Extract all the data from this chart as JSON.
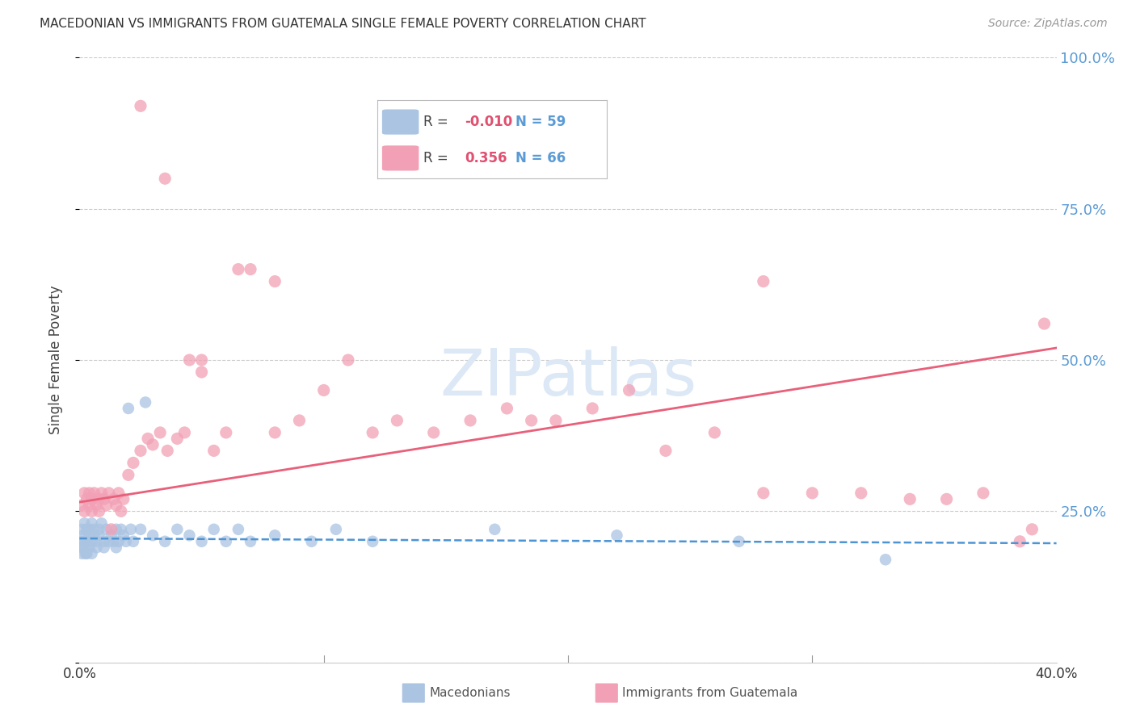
{
  "title": "MACEDONIAN VS IMMIGRANTS FROM GUATEMALA SINGLE FEMALE POVERTY CORRELATION CHART",
  "source": "Source: ZipAtlas.com",
  "ylabel": "Single Female Poverty",
  "xmin": 0.0,
  "xmax": 0.4,
  "ymin": 0.0,
  "ymax": 1.0,
  "macedonian_R": -0.01,
  "macedonian_N": 59,
  "guatemala_R": 0.356,
  "guatemala_N": 66,
  "macedonian_color": "#aac4e2",
  "guatemala_color": "#f2a0b5",
  "macedonian_line_color": "#4d94d4",
  "guatemala_line_color": "#e8607a",
  "watermark_color": "#dce8f5",
  "mac_x": [
    0.0005,
    0.001,
    0.001,
    0.001,
    0.0015,
    0.002,
    0.002,
    0.002,
    0.0025,
    0.003,
    0.003,
    0.003,
    0.004,
    0.004,
    0.004,
    0.005,
    0.005,
    0.005,
    0.006,
    0.006,
    0.007,
    0.007,
    0.008,
    0.008,
    0.009,
    0.01,
    0.01,
    0.011,
    0.012,
    0.013,
    0.014,
    0.015,
    0.015,
    0.016,
    0.017,
    0.018,
    0.019,
    0.02,
    0.021,
    0.022,
    0.025,
    0.027,
    0.03,
    0.035,
    0.04,
    0.045,
    0.05,
    0.055,
    0.06,
    0.065,
    0.07,
    0.08,
    0.095,
    0.105,
    0.12,
    0.17,
    0.22,
    0.27,
    0.33
  ],
  "mac_y": [
    0.2,
    0.22,
    0.19,
    0.18,
    0.21,
    0.23,
    0.2,
    0.19,
    0.18,
    0.22,
    0.2,
    0.18,
    0.22,
    0.21,
    0.19,
    0.23,
    0.2,
    0.18,
    0.21,
    0.22,
    0.19,
    0.2,
    0.22,
    0.21,
    0.23,
    0.2,
    0.19,
    0.22,
    0.2,
    0.21,
    0.2,
    0.22,
    0.19,
    0.2,
    0.22,
    0.21,
    0.2,
    0.42,
    0.22,
    0.2,
    0.22,
    0.43,
    0.21,
    0.2,
    0.22,
    0.21,
    0.2,
    0.22,
    0.2,
    0.22,
    0.2,
    0.21,
    0.2,
    0.22,
    0.2,
    0.22,
    0.21,
    0.2,
    0.17
  ],
  "mac_line_x0": 0.0,
  "mac_line_x1": 0.4,
  "mac_line_y0": 0.205,
  "mac_line_y1": 0.197,
  "guat_x": [
    0.001,
    0.002,
    0.002,
    0.003,
    0.004,
    0.004,
    0.005,
    0.005,
    0.006,
    0.007,
    0.008,
    0.008,
    0.009,
    0.01,
    0.011,
    0.012,
    0.013,
    0.014,
    0.015,
    0.016,
    0.017,
    0.018,
    0.02,
    0.022,
    0.025,
    0.028,
    0.03,
    0.033,
    0.036,
    0.04,
    0.043,
    0.045,
    0.05,
    0.055,
    0.06,
    0.065,
    0.07,
    0.08,
    0.09,
    0.1,
    0.11,
    0.12,
    0.13,
    0.145,
    0.16,
    0.175,
    0.185,
    0.195,
    0.21,
    0.225,
    0.24,
    0.26,
    0.28,
    0.3,
    0.32,
    0.34,
    0.355,
    0.37,
    0.385,
    0.39,
    0.025,
    0.035,
    0.05,
    0.08,
    0.28,
    0.395
  ],
  "guat_y": [
    0.26,
    0.28,
    0.25,
    0.27,
    0.26,
    0.28,
    0.27,
    0.25,
    0.28,
    0.26,
    0.27,
    0.25,
    0.28,
    0.27,
    0.26,
    0.28,
    0.22,
    0.27,
    0.26,
    0.28,
    0.25,
    0.27,
    0.31,
    0.33,
    0.35,
    0.37,
    0.36,
    0.38,
    0.35,
    0.37,
    0.38,
    0.5,
    0.48,
    0.35,
    0.38,
    0.65,
    0.65,
    0.38,
    0.4,
    0.45,
    0.5,
    0.38,
    0.4,
    0.38,
    0.4,
    0.42,
    0.4,
    0.4,
    0.42,
    0.45,
    0.35,
    0.38,
    0.28,
    0.28,
    0.28,
    0.27,
    0.27,
    0.28,
    0.2,
    0.22,
    0.92,
    0.8,
    0.5,
    0.63,
    0.63,
    0.56
  ],
  "guat_line_x0": 0.0,
  "guat_line_x1": 0.4,
  "guat_line_y0": 0.265,
  "guat_line_y1": 0.52
}
